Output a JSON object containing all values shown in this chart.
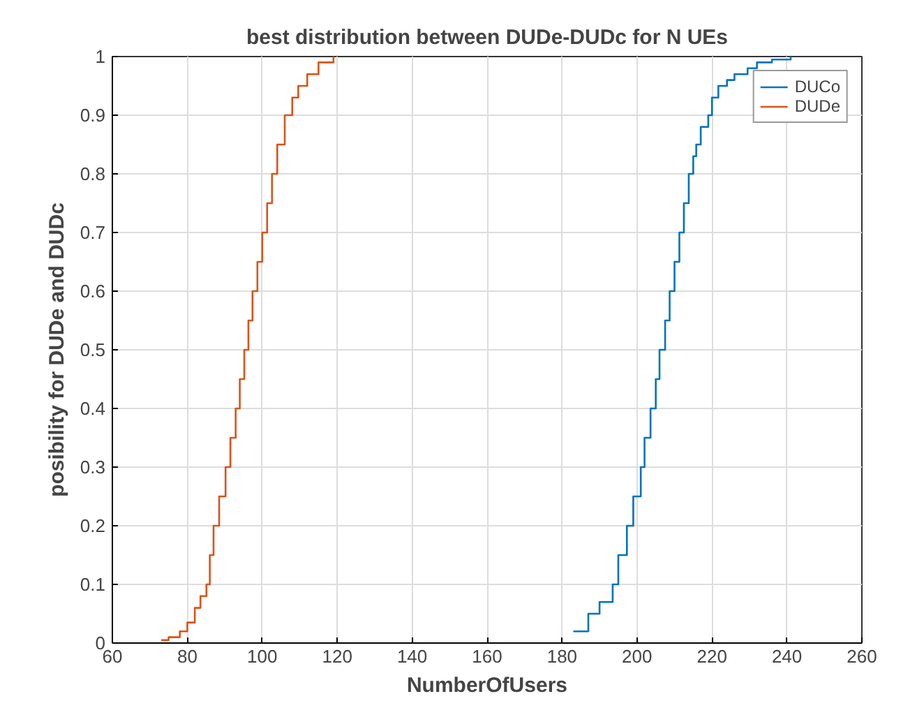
{
  "chart_data": {
    "type": "step",
    "title": "best distribution between DUDe-DUDc for N UEs",
    "xlabel": "NumberOfUsers",
    "ylabel": "posibility for DUDe and DUDc",
    "xlim": [
      60,
      260
    ],
    "ylim": [
      0,
      1
    ],
    "xticks": [
      60,
      80,
      100,
      120,
      140,
      160,
      180,
      200,
      220,
      240,
      260
    ],
    "yticks": [
      0,
      {
        "value": 0.1,
        "label": "0.1"
      },
      {
        "value": 0.2,
        "label": "0.2"
      },
      {
        "value": 0.3,
        "label": "0.3"
      },
      {
        "value": 0.4,
        "label": "0.4"
      },
      {
        "value": 0.5,
        "label": "0.5"
      },
      {
        "value": 0.6,
        "label": "0.6"
      },
      {
        "value": 0.7,
        "label": "0.7"
      },
      {
        "value": 0.8,
        "label": "0.8"
      },
      {
        "value": 0.9,
        "label": "0.9"
      },
      1
    ],
    "grid": true,
    "legend": "top right",
    "series": [
      {
        "name": "DUCo",
        "color": "#0072bd",
        "x": [
          183,
          187,
          190,
          193.5,
          195,
          197.3,
          199,
          201,
          202,
          203.6,
          205,
          206,
          207.5,
          208.7,
          210,
          211.3,
          212.5,
          213.8,
          215,
          215.8,
          217,
          219,
          220,
          221.7,
          224,
          226,
          229.5,
          232,
          236,
          241
        ],
        "values": [
          0.02,
          0.05,
          0.07,
          0.1,
          0.15,
          0.2,
          0.25,
          0.3,
          0.35,
          0.4,
          0.45,
          0.5,
          0.55,
          0.6,
          0.65,
          0.7,
          0.75,
          0.8,
          0.83,
          0.85,
          0.88,
          0.9,
          0.93,
          0.95,
          0.96,
          0.97,
          0.98,
          0.99,
          0.995,
          1
        ]
      },
      {
        "name": "DUDe",
        "color": "#d95319",
        "x": [
          73,
          75,
          78,
          80,
          82,
          83.5,
          85.1,
          86,
          87,
          88.5,
          90.2,
          91.5,
          92.9,
          94,
          95.2,
          96.3,
          97.4,
          98.7,
          100,
          101.3,
          102.6,
          104,
          106,
          108,
          109.6,
          112,
          115,
          119
        ],
        "values": [
          0.005,
          0.01,
          0.02,
          0.035,
          0.06,
          0.08,
          0.1,
          0.15,
          0.2,
          0.25,
          0.3,
          0.35,
          0.4,
          0.45,
          0.5,
          0.55,
          0.6,
          0.65,
          0.7,
          0.75,
          0.8,
          0.85,
          0.9,
          0.93,
          0.95,
          0.97,
          0.99,
          1
        ]
      }
    ]
  }
}
